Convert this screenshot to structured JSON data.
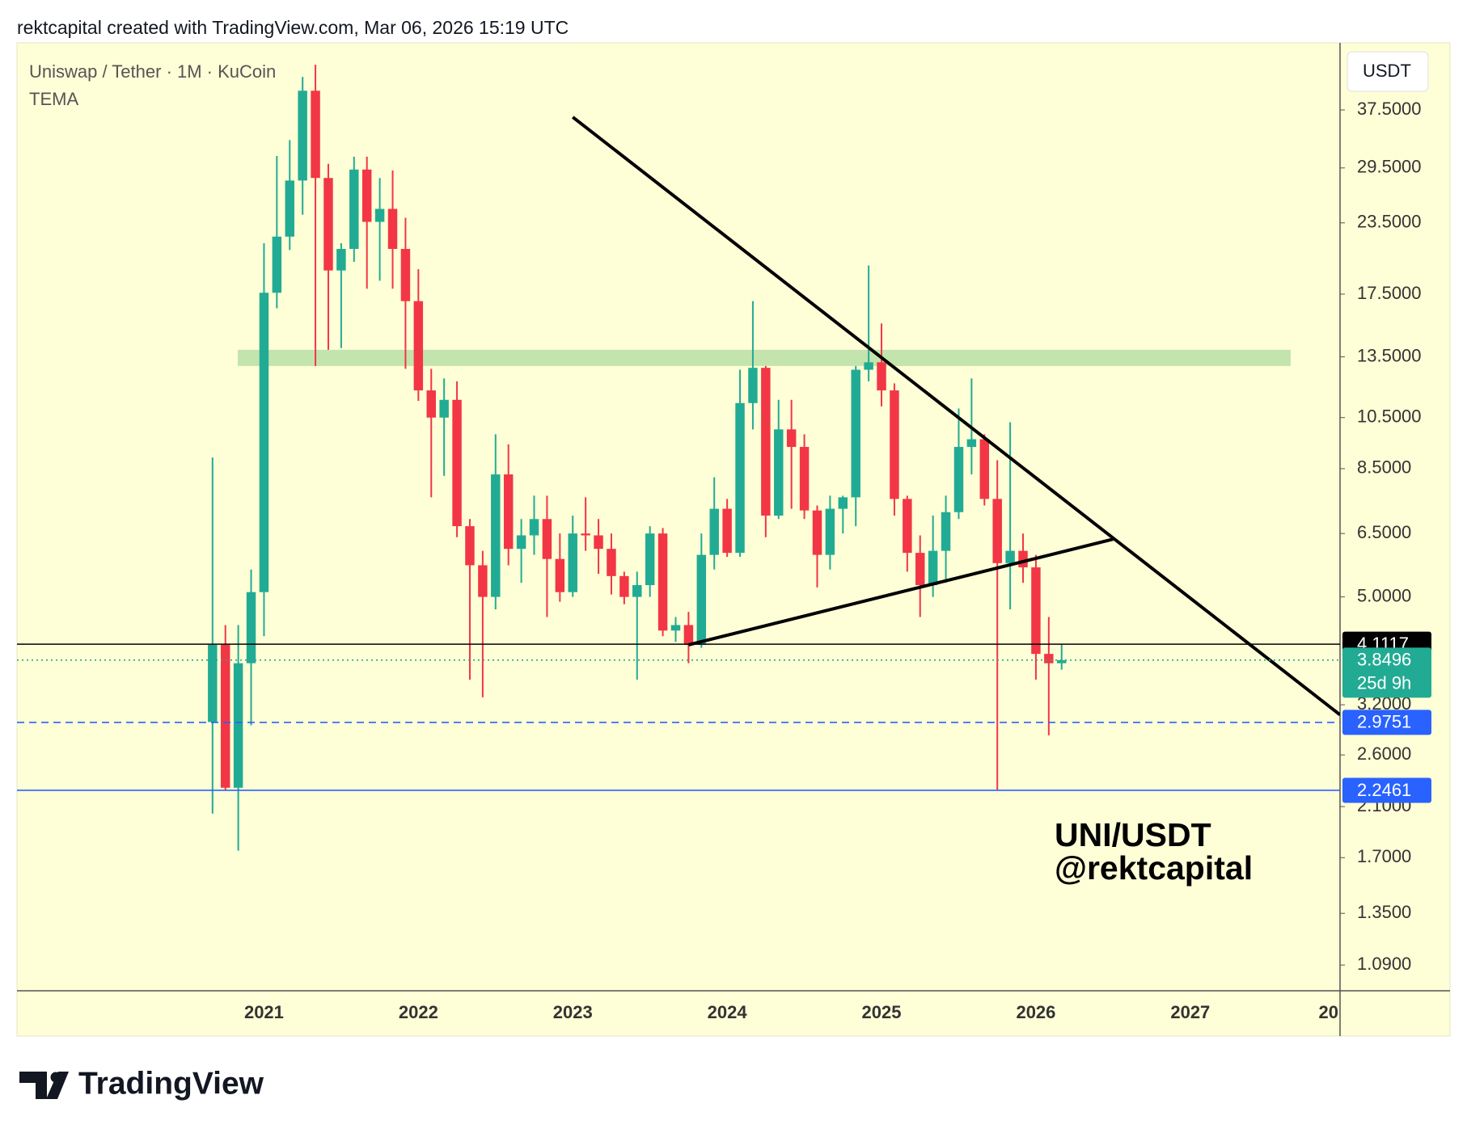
{
  "page": {
    "header": "rektcapital created with TradingView.com, Mar 06, 2026 15:19 UTC",
    "brand": "TradingView"
  },
  "chart_data": {
    "type": "candlestick",
    "title": "Uniswap / Tether · 1M · KuCoin",
    "indicator": "TEMA",
    "currency": "USDT",
    "annotation": [
      "UNI/USDT",
      "@rektcapital"
    ],
    "up_color": "#22ab94",
    "down_color": "#f23645",
    "log_scale": true,
    "grid": false,
    "xlim": [
      2019.4,
      2027.97
    ],
    "xticks": [
      2021,
      2022,
      2023,
      2024,
      2025,
      2026,
      2027,
      {
        "value": 2028,
        "label": "20"
      }
    ],
    "ylim": [
      0.98,
      49.5
    ],
    "yticks": [
      {
        "value": 37.5,
        "label": "37.5000"
      },
      {
        "value": 29.5,
        "label": "29.5000"
      },
      {
        "value": 23.5,
        "label": "23.5000"
      },
      {
        "value": 17.5,
        "label": "17.5000"
      },
      {
        "value": 13.5,
        "label": "13.5000"
      },
      {
        "value": 10.5,
        "label": "10.5000"
      },
      {
        "value": 8.5,
        "label": "8.5000"
      },
      {
        "value": 6.5,
        "label": "6.5000"
      },
      {
        "value": 5.0,
        "label": "5.0000"
      },
      {
        "value": 3.2,
        "label": "3.2000"
      },
      {
        "value": 2.6,
        "label": "2.6000"
      },
      {
        "value": 2.1,
        "label": "2.1000"
      },
      {
        "value": 1.7,
        "label": "1.7000"
      },
      {
        "value": 1.35,
        "label": "1.3500"
      },
      {
        "value": 1.09,
        "label": "1.0900"
      }
    ],
    "x": [
      "2020-09",
      "2020-10",
      "2020-11",
      "2020-12",
      "2021-01",
      "2021-02",
      "2021-03",
      "2021-04",
      "2021-05",
      "2021-06",
      "2021-07",
      "2021-08",
      "2021-09",
      "2021-10",
      "2021-11",
      "2021-12",
      "2022-01",
      "2022-02",
      "2022-03",
      "2022-04",
      "2022-05",
      "2022-06",
      "2022-07",
      "2022-08",
      "2022-09",
      "2022-10",
      "2022-11",
      "2022-12",
      "2023-01",
      "2023-02",
      "2023-03",
      "2023-04",
      "2023-05",
      "2023-06",
      "2023-07",
      "2023-08",
      "2023-09",
      "2023-10",
      "2023-11",
      "2023-12",
      "2024-01",
      "2024-02",
      "2024-03",
      "2024-04",
      "2024-05",
      "2024-06",
      "2024-07",
      "2024-08",
      "2024-09",
      "2024-10",
      "2024-11",
      "2024-12",
      "2025-01",
      "2025-02",
      "2025-03",
      "2025-04",
      "2025-05",
      "2025-06",
      "2025-07",
      "2025-08",
      "2025-09",
      "2025-10",
      "2025-11",
      "2025-12",
      "2026-01",
      "2026-02",
      "2026-03"
    ],
    "open": [
      2.98,
      4.1,
      2.27,
      3.8,
      5.1,
      17.6,
      22.2,
      28.0,
      40.6,
      28.3,
      19.3,
      21.1,
      29.3,
      23.6,
      24.9,
      21.1,
      17.0,
      11.75,
      10.5,
      11.3,
      6.7,
      5.7,
      5.0,
      8.3,
      6.1,
      6.45,
      6.9,
      5.85,
      5.1,
      6.5,
      6.45,
      6.1,
      5.45,
      5.0,
      5.25,
      6.5,
      4.35,
      4.45,
      4.1,
      5.95,
      7.2,
      6.0,
      11.15,
      12.9,
      7.0,
      10.0,
      9.3,
      7.15,
      5.95,
      7.2,
      7.55,
      12.8,
      13.2,
      11.75,
      7.5,
      6.0,
      5.25,
      6.05,
      7.1,
      9.3,
      9.6,
      7.5,
      5.75,
      6.05,
      5.65,
      3.95,
      3.8
    ],
    "high": [
      8.9,
      4.45,
      4.45,
      5.6,
      21.6,
      31,
      33.1,
      43,
      45.2,
      30,
      21.6,
      30.9,
      30.9,
      28.3,
      29.2,
      24.0,
      19.4,
      12.85,
      12.35,
      12.2,
      6.9,
      6.05,
      9.8,
      9.4,
      6.9,
      7.6,
      7.6,
      6.5,
      7.0,
      7.55,
      6.9,
      6.5,
      5.55,
      5.55,
      6.7,
      6.65,
      4.6,
      4.7,
      6.5,
      8.2,
      7.5,
      12.8,
      17.0,
      13.0,
      11.3,
      11.3,
      9.8,
      7.3,
      7.6,
      7.6,
      13.0,
      19.7,
      15.5,
      12.1,
      7.6,
      6.45,
      7.0,
      7.6,
      10.9,
      12.35,
      9.8,
      8.8,
      10.3,
      6.5,
      5.95,
      4.6,
      4.1
    ],
    "low": [
      2.04,
      2.25,
      1.75,
      2.94,
      4.25,
      16.5,
      21.0,
      24.3,
      13.0,
      13.9,
      14.0,
      20.0,
      17.9,
      18.5,
      17.9,
      12.85,
      11.25,
      7.55,
      8.25,
      6.4,
      3.55,
      3.3,
      4.75,
      5.7,
      5.3,
      5.95,
      4.6,
      4.9,
      5.0,
      6.05,
      5.5,
      5.05,
      4.85,
      3.55,
      5.0,
      4.25,
      4.15,
      3.8,
      4.05,
      5.6,
      5.9,
      5.9,
      10.0,
      6.4,
      6.9,
      7.2,
      6.9,
      5.2,
      5.6,
      6.5,
      6.7,
      12.2,
      11.0,
      7.0,
      5.55,
      4.6,
      5.0,
      5.3,
      6.9,
      8.3,
      7.3,
      2.25,
      4.75,
      5.3,
      3.55,
      2.82,
      3.7
    ],
    "close": [
      4.1,
      2.27,
      3.8,
      5.1,
      17.6,
      22.2,
      28.0,
      40.6,
      28.3,
      19.3,
      21.1,
      29.3,
      23.6,
      24.9,
      21.1,
      17.0,
      11.75,
      10.5,
      11.3,
      6.7,
      5.7,
      5.0,
      8.3,
      6.1,
      6.45,
      6.9,
      5.85,
      5.1,
      6.5,
      6.45,
      6.1,
      5.45,
      5.0,
      5.25,
      6.5,
      4.35,
      4.45,
      4.1,
      5.95,
      7.2,
      6.0,
      11.15,
      12.9,
      7.0,
      10.0,
      9.3,
      7.15,
      5.95,
      7.2,
      7.55,
      12.8,
      13.2,
      11.75,
      7.5,
      6.0,
      5.25,
      6.05,
      7.1,
      9.3,
      9.6,
      7.5,
      5.75,
      6.05,
      5.65,
      3.95,
      3.8,
      3.85
    ],
    "hlines": [
      {
        "value": 4.1117,
        "color": "#000000",
        "style": "solid"
      },
      {
        "value": 3.8496,
        "color": "#22ab94",
        "style": "dotted",
        "countdown": "25d 9h"
      },
      {
        "value": 2.9751,
        "color": "#2962ff",
        "style": "dashed"
      },
      {
        "value": 2.2461,
        "color": "#2962ff",
        "style": "solid"
      }
    ],
    "zone": {
      "x": [
        2020.83,
        2027.65
      ],
      "y": [
        13.0,
        13.9
      ],
      "color": "#c3e4ad"
    },
    "trendlines": [
      {
        "points": [
          [
            2023.0,
            36.4
          ],
          [
            2027.97,
            3.07
          ]
        ],
        "color": "#000000"
      },
      {
        "points": [
          [
            2023.75,
            4.1
          ],
          [
            2026.5,
            6.35
          ]
        ],
        "color": "#000000"
      }
    ]
  }
}
